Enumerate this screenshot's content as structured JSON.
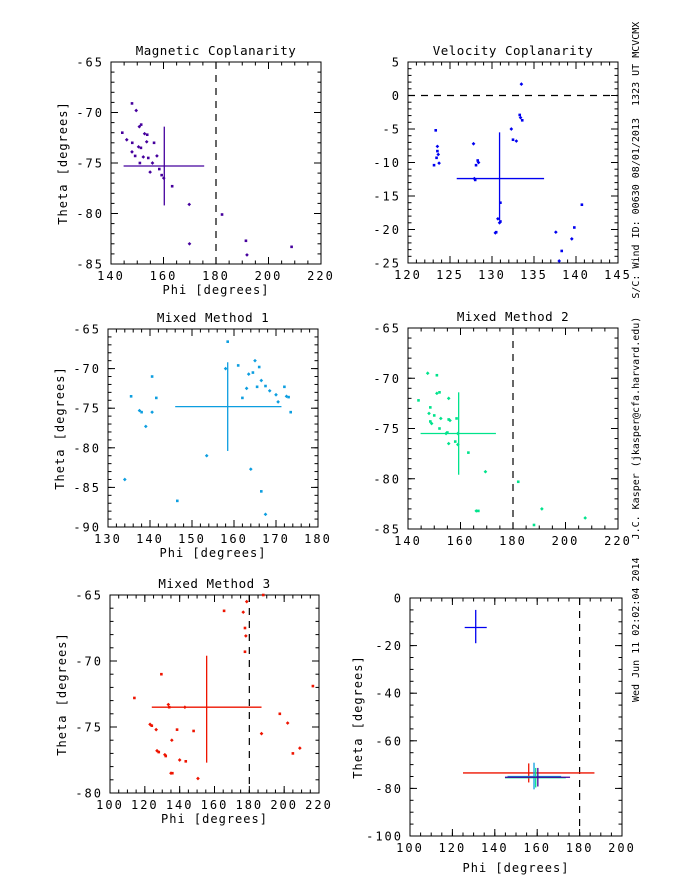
{
  "annotation": {
    "side_text": "Wed Jun 11 02:02:04 2014   J.C. Kasper (jkasper@cfa.harvard.edu)   S/C: Wind ID: 00630 08/01/2013  1323 UT MCVCMX"
  },
  "chart_data": [
    {
      "id": "magnetic-coplanarity",
      "type": "scatter",
      "title": "Magnetic Coplanarity",
      "xlabel": "Phi [degrees]",
      "ylabel": "Theta [degrees]",
      "xlim": [
        140,
        220
      ],
      "ylim": [
        -85,
        -65
      ],
      "x_major": 20,
      "x_minor": 5,
      "y_major": 5,
      "y_minor": 1,
      "color": "#45009d",
      "dashed_line": {
        "axis": "x",
        "value": 180
      },
      "points": [
        [
          148,
          -69.1
        ],
        [
          149.6,
          -69.8
        ],
        [
          151.5,
          -71.2
        ],
        [
          150.8,
          -71.4
        ],
        [
          144.3,
          -72.0
        ],
        [
          152.8,
          -72.1
        ],
        [
          153.8,
          -72.2
        ],
        [
          146,
          -72.7
        ],
        [
          148.1,
          -73.0
        ],
        [
          153.6,
          -72.9
        ],
        [
          156.4,
          -73.0
        ],
        [
          150.5,
          -73.4
        ],
        [
          151.4,
          -73.5
        ],
        [
          148,
          -73.9
        ],
        [
          149.2,
          -74.3
        ],
        [
          152.3,
          -74.4
        ],
        [
          154.2,
          -74.5
        ],
        [
          157.5,
          -74.3
        ],
        [
          151,
          -75.0
        ],
        [
          155.8,
          -75.0
        ],
        [
          158.4,
          -75.6
        ],
        [
          154.9,
          -75.9
        ],
        [
          159.3,
          -76.2
        ],
        [
          160.1,
          -76.5
        ],
        [
          163.3,
          -77.3
        ],
        [
          169.8,
          -79.1
        ],
        [
          182.3,
          -80.1
        ],
        [
          169.9,
          -83.0
        ],
        [
          191.4,
          -82.7
        ],
        [
          191.8,
          -84.1
        ],
        [
          208.8,
          -83.3
        ]
      ],
      "crosses": [
        {
          "method": "Magnetic Coplanarity",
          "color": "#45009d",
          "x": 160.3,
          "y": -75.3,
          "x_err": [
            144.8,
            175.5
          ],
          "y_err": [
            -79.2,
            -71.4
          ]
        }
      ]
    },
    {
      "id": "velocity-coplanarity",
      "type": "scatter",
      "title": "Velocity Coplanarity",
      "xlabel": "",
      "ylabel": "",
      "xlim": [
        120,
        145
      ],
      "ylim": [
        -25,
        5
      ],
      "x_major": 5,
      "x_minor": 1,
      "y_major": 5,
      "y_minor": 1,
      "color": "#0000f0",
      "dashed_line": {
        "axis": "y",
        "value": 0
      },
      "points": [
        [
          123.3,
          -5.2
        ],
        [
          123.5,
          -7.6
        ],
        [
          123.5,
          -8.3
        ],
        [
          123.6,
          -8.8
        ],
        [
          123.4,
          -9.3
        ],
        [
          123.7,
          -10.1
        ],
        [
          123.1,
          -10.4
        ],
        [
          127.8,
          -7.2
        ],
        [
          128.3,
          -9.7
        ],
        [
          128.4,
          -10.0
        ],
        [
          128.1,
          -10.4
        ],
        [
          127.9,
          -12.4
        ],
        [
          128.0,
          -12.6
        ],
        [
          133.5,
          1.7
        ],
        [
          133.3,
          -2.9
        ],
        [
          133.4,
          -3.3
        ],
        [
          133.6,
          -3.7
        ],
        [
          132.3,
          -5.0
        ],
        [
          132.5,
          -6.6
        ],
        [
          132.9,
          -6.8
        ],
        [
          131.0,
          -16.0
        ],
        [
          130.7,
          -18.4
        ],
        [
          131.0,
          -18.8
        ],
        [
          130.9,
          -19.0
        ],
        [
          130.5,
          -20.4
        ],
        [
          130.4,
          -20.5
        ],
        [
          140.7,
          -16.3
        ],
        [
          137.6,
          -20.4
        ],
        [
          139.8,
          -19.7
        ],
        [
          139.5,
          -21.4
        ],
        [
          138.3,
          -23.2
        ],
        [
          138.0,
          -24.7
        ]
      ],
      "crosses": [
        {
          "method": "Velocity Coplanarity",
          "color": "#0000f0",
          "x": 130.9,
          "y": -12.4,
          "x_err": [
            125.8,
            136.2
          ],
          "y_err": [
            -18.6,
            -5.5
          ]
        }
      ]
    },
    {
      "id": "mixed-method-1",
      "type": "scatter",
      "title": "Mixed Method 1",
      "xlabel": "Phi [degrees]",
      "ylabel": "Theta [degrees]",
      "xlim": [
        130,
        180
      ],
      "ylim": [
        -90,
        -65
      ],
      "x_major": 10,
      "x_minor": 2,
      "y_major": 5,
      "y_minor": 1,
      "color": "#0d9ee0",
      "dashed_line": null,
      "points": [
        [
          135.5,
          -73.5
        ],
        [
          137.5,
          -75.3
        ],
        [
          138,
          -75.5
        ],
        [
          139,
          -77.3
        ],
        [
          140.5,
          -71
        ],
        [
          140.5,
          -75.5
        ],
        [
          141.5,
          -73.7
        ],
        [
          134,
          -84
        ],
        [
          146.5,
          -86.7
        ],
        [
          153.5,
          -81
        ],
        [
          158.5,
          -66.6
        ],
        [
          158,
          -70
        ],
        [
          161,
          -69.6
        ],
        [
          163.5,
          -70.7
        ],
        [
          164.5,
          -70.5
        ],
        [
          165,
          -69
        ],
        [
          166,
          -69.8
        ],
        [
          163,
          -72.5
        ],
        [
          165.5,
          -72.3
        ],
        [
          166.5,
          -71.5
        ],
        [
          167.5,
          -72.2
        ],
        [
          168.5,
          -72.8
        ],
        [
          162,
          -73.7
        ],
        [
          170,
          -73.3
        ],
        [
          172,
          -72.3
        ],
        [
          172.5,
          -73.5
        ],
        [
          173,
          -73.6
        ],
        [
          170.5,
          -74.2
        ],
        [
          173.5,
          -75.5
        ],
        [
          164,
          -82.7
        ],
        [
          166.5,
          -85.5
        ],
        [
          167.5,
          -88.4
        ]
      ],
      "crosses": [
        {
          "method": "Mixed Method 1",
          "color": "#0d9ee0",
          "x": 158.5,
          "y": -74.8,
          "x_err": [
            146,
            171.3
          ],
          "y_err": [
            -80.4,
            -69.2
          ]
        }
      ]
    },
    {
      "id": "mixed-method-2",
      "type": "scatter",
      "title": "Mixed Method 2",
      "xlabel": "",
      "ylabel": "",
      "xlim": [
        140,
        220
      ],
      "ylim": [
        -85,
        -65
      ],
      "x_major": 20,
      "x_minor": 5,
      "y_major": 5,
      "y_minor": 1,
      "color": "#00e38c",
      "dashed_line": {
        "axis": "x",
        "value": 180
      },
      "points": [
        [
          144,
          -72.2
        ],
        [
          147.5,
          -69.5
        ],
        [
          151,
          -69.7
        ],
        [
          151,
          -71.5
        ],
        [
          152,
          -71.4
        ],
        [
          155.5,
          -72
        ],
        [
          148.5,
          -72.9
        ],
        [
          148,
          -73.5
        ],
        [
          150,
          -73.7
        ],
        [
          152.5,
          -74
        ],
        [
          148.5,
          -74.3
        ],
        [
          149,
          -74.5
        ],
        [
          155.5,
          -74.1
        ],
        [
          156,
          -74.2
        ],
        [
          152,
          -75
        ],
        [
          154.5,
          -75.5
        ],
        [
          155,
          -75.4
        ],
        [
          159,
          -75.5
        ],
        [
          158.5,
          -74
        ],
        [
          155.5,
          -76.5
        ],
        [
          158,
          -76.3
        ],
        [
          159,
          -76.6
        ],
        [
          163,
          -77.4
        ],
        [
          169.5,
          -79.3
        ],
        [
          182,
          -80.3
        ],
        [
          166,
          -83.2
        ],
        [
          166.8,
          -83.2
        ],
        [
          191,
          -83
        ],
        [
          188,
          -84.6
        ],
        [
          207.5,
          -83.9
        ]
      ],
      "crosses": [
        {
          "method": "Mixed Method 2",
          "color": "#00e38c",
          "x": 159.3,
          "y": -75.5,
          "x_err": [
            144.8,
            173.5
          ],
          "y_err": [
            -79.6,
            -71.4
          ]
        }
      ]
    },
    {
      "id": "mixed-method-3",
      "type": "scatter",
      "title": "Mixed Method 3",
      "xlabel": "Phi [degrees]",
      "ylabel": "Theta [degrees]",
      "xlim": [
        100,
        220
      ],
      "ylim": [
        -80,
        -65
      ],
      "x_major": 20,
      "x_minor": 5,
      "y_major": 5,
      "y_minor": 1,
      "color": "#ee1400",
      "dashed_line": {
        "axis": "x",
        "value": 180
      },
      "points": [
        [
          114,
          -72.8
        ],
        [
          123,
          -74.8
        ],
        [
          124,
          -74.9
        ],
        [
          126.5,
          -75.2
        ],
        [
          129.5,
          -71
        ],
        [
          133.5,
          -73.3
        ],
        [
          134,
          -73.5
        ],
        [
          135.5,
          -76
        ],
        [
          138.5,
          -75.2
        ],
        [
          143,
          -73.5
        ],
        [
          148,
          -75.3
        ],
        [
          127,
          -76.8
        ],
        [
          128,
          -76.9
        ],
        [
          131.5,
          -77.1
        ],
        [
          132,
          -77.2
        ],
        [
          135,
          -78.5
        ],
        [
          135.8,
          -78.5
        ],
        [
          140,
          -77.5
        ],
        [
          143.5,
          -77.6
        ],
        [
          150.5,
          -78.9
        ],
        [
          165.5,
          -66.2
        ],
        [
          176.5,
          -66.3
        ],
        [
          177.5,
          -67.5
        ],
        [
          178,
          -68.1
        ],
        [
          177.5,
          -69.3
        ],
        [
          178.5,
          -65.5
        ],
        [
          188,
          -65
        ],
        [
          187,
          -75.5
        ],
        [
          197.5,
          -74
        ],
        [
          202,
          -74.7
        ],
        [
          205,
          -77
        ],
        [
          209,
          -76.6
        ],
        [
          216.5,
          -71.9
        ]
      ],
      "crosses": [
        {
          "method": "Mixed Method 3",
          "color": "#ee1400",
          "x": 155.5,
          "y": -73.5,
          "x_err": [
            124,
            187
          ],
          "y_err": [
            -77.7,
            -69.6
          ]
        }
      ]
    },
    {
      "id": "summary",
      "type": "scatter",
      "title": "",
      "xlabel": "Phi [degrees]",
      "ylabel": "Theta [degrees]",
      "xlim": [
        100,
        200
      ],
      "ylim": [
        -100,
        0
      ],
      "x_major": 20,
      "x_minor": 5,
      "y_major": 20,
      "y_minor": 5,
      "color": "#000000",
      "dashed_line": {
        "axis": "x",
        "value": 180
      },
      "points": [],
      "crosses": [
        {
          "method": "Velocity Coplanarity",
          "color": "#0000f0",
          "x": 131,
          "y": -12.4,
          "x_err": [
            125.8,
            136.2
          ],
          "y_err": [
            -19,
            -5
          ]
        },
        {
          "method": "Mixed Method 3",
          "color": "#ee1400",
          "x": 156,
          "y": -73.5,
          "x_err": [
            125,
            187
          ],
          "y_err": [
            -77.5,
            -69.5
          ]
        },
        {
          "method": "Mixed Method 1",
          "color": "#0d9ee0",
          "x": 158.5,
          "y": -75,
          "x_err": [
            146,
            171.3
          ],
          "y_err": [
            -80.4,
            -69.2
          ]
        },
        {
          "method": "Mixed Method 2",
          "color": "#00e38c",
          "x": 159.3,
          "y": -75.5,
          "x_err": [
            144.8,
            173.5
          ],
          "y_err": [
            -79.6,
            -71.4
          ]
        },
        {
          "method": "Magnetic Coplanarity",
          "color": "#45009d",
          "x": 160.3,
          "y": -75.3,
          "x_err": [
            144.8,
            175.5
          ],
          "y_err": [
            -79.2,
            -71.4
          ]
        }
      ]
    }
  ]
}
